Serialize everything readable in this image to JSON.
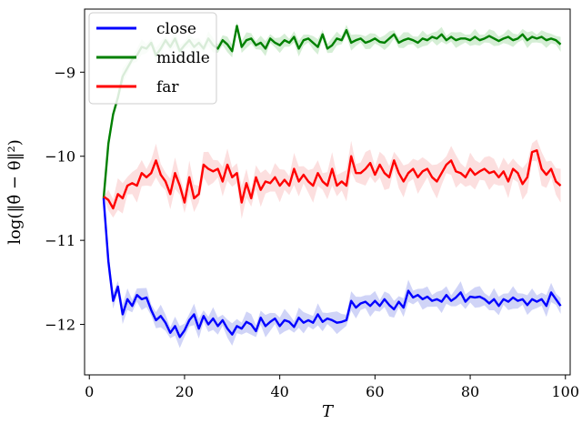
{
  "chart_data": {
    "type": "line",
    "xlabel": "T",
    "ylabel": "log(‖θ̂ − θ‖²)",
    "xlim": [
      -1,
      101
    ],
    "ylim": [
      -12.6,
      -8.25
    ],
    "xticks": [
      0,
      20,
      40,
      60,
      80,
      100
    ],
    "yticks": [
      -12,
      -11,
      -10,
      -9
    ],
    "legend_position": "top-left",
    "grid": false,
    "x": [
      3,
      4,
      5,
      6,
      7,
      8,
      9,
      10,
      11,
      12,
      13,
      14,
      15,
      16,
      17,
      18,
      19,
      20,
      21,
      22,
      23,
      24,
      25,
      26,
      27,
      28,
      29,
      30,
      31,
      32,
      33,
      34,
      35,
      36,
      37,
      38,
      39,
      40,
      41,
      42,
      43,
      44,
      45,
      46,
      47,
      48,
      49,
      50,
      51,
      52,
      53,
      54,
      55,
      56,
      57,
      58,
      59,
      60,
      61,
      62,
      63,
      64,
      65,
      66,
      67,
      68,
      69,
      70,
      71,
      72,
      73,
      74,
      75,
      76,
      77,
      78,
      79,
      80,
      81,
      82,
      83,
      84,
      85,
      86,
      87,
      88,
      89,
      90,
      91,
      92,
      93,
      94,
      95,
      96,
      97,
      98,
      99
    ],
    "series": [
      {
        "name": "close",
        "color": "#0000ff",
        "band_color": "#aab0f0",
        "values": [
          -10.5,
          -11.25,
          -11.72,
          -11.55,
          -11.88,
          -11.7,
          -11.78,
          -11.65,
          -11.7,
          -11.68,
          -11.83,
          -11.95,
          -11.9,
          -11.98,
          -12.1,
          -12.02,
          -12.15,
          -12.07,
          -11.95,
          -11.88,
          -12.05,
          -11.9,
          -12.0,
          -11.93,
          -12.02,
          -11.95,
          -12.05,
          -12.12,
          -12.02,
          -12.05,
          -11.97,
          -12.0,
          -12.08,
          -11.92,
          -12.02,
          -11.97,
          -11.93,
          -12.02,
          -11.95,
          -11.97,
          -12.03,
          -11.92,
          -11.98,
          -11.95,
          -11.98,
          -11.88,
          -11.97,
          -11.93,
          -11.95,
          -11.98,
          -11.97,
          -11.95,
          -11.72,
          -11.8,
          -11.75,
          -11.73,
          -11.78,
          -11.72,
          -11.78,
          -11.7,
          -11.77,
          -11.82,
          -11.73,
          -11.8,
          -11.6,
          -11.68,
          -11.65,
          -11.7,
          -11.67,
          -11.72,
          -11.7,
          -11.73,
          -11.65,
          -11.72,
          -11.68,
          -11.62,
          -11.73,
          -11.67,
          -11.68,
          -11.67,
          -11.7,
          -11.75,
          -11.7,
          -11.78,
          -11.7,
          -11.73,
          -11.68,
          -11.72,
          -11.7,
          -11.77,
          -11.7,
          -11.73,
          -11.7,
          -11.78,
          -11.62,
          -11.7,
          -11.78
        ]
      },
      {
        "name": "middle",
        "color": "#008000",
        "band_color": "#b3e0b3",
        "values": [
          -10.5,
          -9.85,
          -9.5,
          -9.3,
          -9.05,
          -8.95,
          -8.85,
          -8.8,
          -8.7,
          -8.72,
          -8.65,
          -8.8,
          -8.72,
          -8.62,
          -8.7,
          -8.6,
          -8.75,
          -8.68,
          -8.62,
          -8.7,
          -8.65,
          -8.72,
          -8.6,
          -8.68,
          -8.72,
          -8.62,
          -8.67,
          -8.75,
          -8.45,
          -8.7,
          -8.62,
          -8.6,
          -8.68,
          -8.65,
          -8.72,
          -8.6,
          -8.65,
          -8.68,
          -8.62,
          -8.65,
          -8.58,
          -8.72,
          -8.62,
          -8.6,
          -8.65,
          -8.7,
          -8.55,
          -8.72,
          -8.68,
          -8.6,
          -8.62,
          -8.5,
          -8.65,
          -8.62,
          -8.6,
          -8.65,
          -8.63,
          -8.6,
          -8.64,
          -8.65,
          -8.6,
          -8.55,
          -8.65,
          -8.62,
          -8.6,
          -8.62,
          -8.65,
          -8.6,
          -8.62,
          -8.58,
          -8.6,
          -8.55,
          -8.62,
          -8.58,
          -8.62,
          -8.6,
          -8.6,
          -8.62,
          -8.58,
          -8.62,
          -8.6,
          -8.57,
          -8.6,
          -8.63,
          -8.6,
          -8.58,
          -8.62,
          -8.6,
          -8.55,
          -8.62,
          -8.58,
          -8.6,
          -8.58,
          -8.62,
          -8.6,
          -8.62,
          -8.67
        ]
      },
      {
        "name": "far",
        "color": "#ff0000",
        "band_color": "#f9c4c4",
        "values": [
          -10.48,
          -10.52,
          -10.62,
          -10.45,
          -10.5,
          -10.35,
          -10.32,
          -10.35,
          -10.2,
          -10.25,
          -10.2,
          -10.05,
          -10.22,
          -10.3,
          -10.45,
          -10.2,
          -10.35,
          -10.55,
          -10.25,
          -10.5,
          -10.45,
          -10.1,
          -10.15,
          -10.18,
          -10.15,
          -10.3,
          -10.1,
          -10.25,
          -10.2,
          -10.55,
          -10.32,
          -10.5,
          -10.25,
          -10.4,
          -10.3,
          -10.32,
          -10.25,
          -10.35,
          -10.28,
          -10.35,
          -10.15,
          -10.3,
          -10.22,
          -10.3,
          -10.35,
          -10.2,
          -10.3,
          -10.35,
          -10.15,
          -10.35,
          -10.3,
          -10.35,
          -10.0,
          -10.2,
          -10.2,
          -10.15,
          -10.08,
          -10.22,
          -10.1,
          -10.2,
          -10.25,
          -10.05,
          -10.2,
          -10.3,
          -10.2,
          -10.15,
          -10.25,
          -10.18,
          -10.15,
          -10.25,
          -10.3,
          -10.2,
          -10.1,
          -10.05,
          -10.18,
          -10.2,
          -10.25,
          -10.15,
          -10.22,
          -10.18,
          -10.15,
          -10.2,
          -10.18,
          -10.25,
          -10.18,
          -10.3,
          -10.15,
          -10.2,
          -10.33,
          -10.25,
          -9.95,
          -9.93,
          -10.15,
          -10.22,
          -10.15,
          -10.3,
          -10.35
        ]
      }
    ]
  }
}
